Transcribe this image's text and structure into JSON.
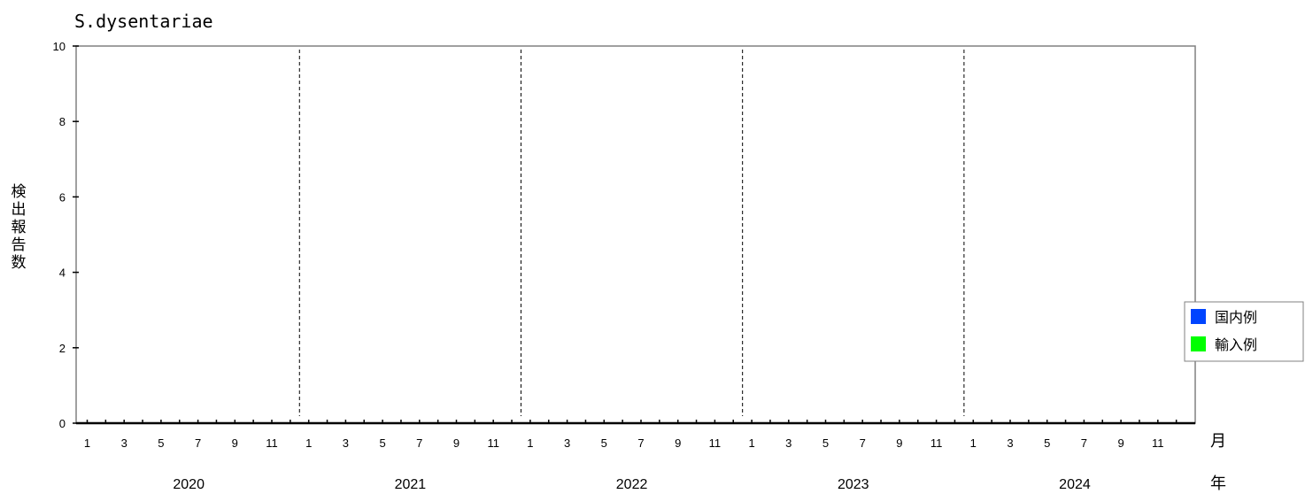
{
  "chart_data": {
    "type": "bar",
    "title": "S.dysentariae",
    "ylabel": "検出報告数",
    "month_unit": "月",
    "year_unit": "年",
    "ylim": [
      0,
      10
    ],
    "yticks": [
      0,
      2,
      4,
      6,
      8,
      10
    ],
    "years": [
      "2020",
      "2021",
      "2022",
      "2023",
      "2024"
    ],
    "month_tick_labels": [
      "1",
      "3",
      "5",
      "7",
      "9",
      "11"
    ],
    "months_per_year": 12,
    "grid": false,
    "legend_position": "right",
    "series": [
      {
        "name": "国内例",
        "color": "#0044ff",
        "values": []
      },
      {
        "name": "輸入例",
        "color": "#00ff00",
        "values": []
      }
    ]
  }
}
